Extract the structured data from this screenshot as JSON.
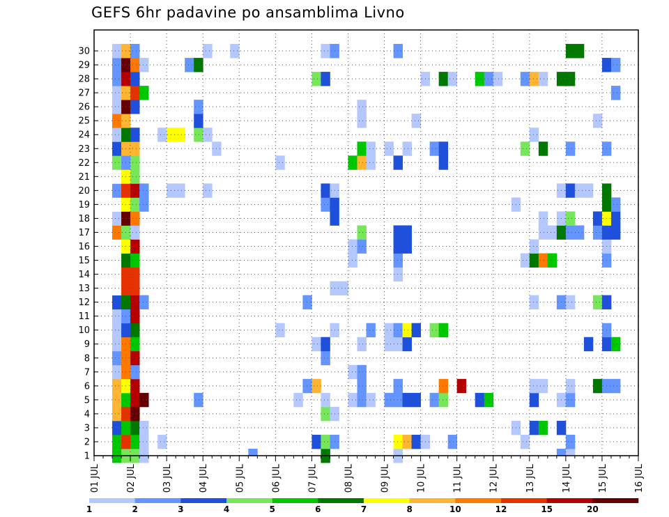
{
  "chart_data": {
    "type": "heatmap",
    "title": "GEFS 6hr padavine po ansamblima Livno",
    "y_members": [
      1,
      2,
      3,
      4,
      5,
      6,
      7,
      8,
      9,
      10,
      11,
      12,
      13,
      14,
      15,
      16,
      17,
      18,
      19,
      20,
      21,
      22,
      23,
      24,
      25,
      26,
      27,
      28,
      29,
      30
    ],
    "x_ticks": [
      "01 JUL",
      "02 JUL",
      "03 JUL",
      "04 JUL",
      "05 JUL",
      "06 JUL",
      "07 JUL",
      "08 JUL",
      "09 JUL",
      "10 JUL",
      "11 JUL",
      "12 JUL",
      "13 JUL",
      "14 JUL",
      "15 JUL",
      "16 JUL"
    ],
    "x_range": [
      "01 JUL 00Z",
      "16 JUL 00Z"
    ],
    "time_step_hours": 6,
    "grid": "dotted",
    "legend_position": "bottom",
    "colorbar": {
      "labels": [
        "1",
        "2",
        "3",
        "4",
        "5",
        "6",
        "7",
        "8",
        "10",
        "12",
        "15",
        "20"
      ],
      "colors": [
        "#b4c8ff",
        "#6495ff",
        "#1e50dc",
        "#78e65a",
        "#00c800",
        "#007800",
        "#ffff00",
        "#ffb432",
        "#ff7800",
        "#e63200",
        "#b40000",
        "#640000"
      ]
    },
    "cells": [
      [
        2,
        1,
        "#00c800"
      ],
      [
        2,
        2,
        "#00c800"
      ],
      [
        2,
        3,
        "#1e50dc"
      ],
      [
        2,
        4,
        "#ffb432"
      ],
      [
        2,
        5,
        "#ffb432"
      ],
      [
        2,
        6,
        "#ffb432"
      ],
      [
        2,
        7,
        "#b4c8ff"
      ],
      [
        2,
        8,
        "#6495ff"
      ],
      [
        2,
        9,
        "#b4c8ff"
      ],
      [
        2,
        10,
        "#b4c8ff"
      ],
      [
        2,
        11,
        "#b4c8ff"
      ],
      [
        2,
        12,
        "#1e50dc"
      ],
      [
        2,
        13,
        "#ffffff"
      ],
      [
        2,
        14,
        "#ffffff"
      ],
      [
        2,
        15,
        "#ffffff"
      ],
      [
        2,
        16,
        "#ffffff"
      ],
      [
        2,
        17,
        "#ff7800"
      ],
      [
        2,
        18,
        "#b4c8ff"
      ],
      [
        2,
        19,
        "#ffffff"
      ],
      [
        2,
        20,
        "#6495ff"
      ],
      [
        2,
        21,
        "#ffffff"
      ],
      [
        2,
        22,
        "#78e65a"
      ],
      [
        2,
        23,
        "#1e50dc"
      ],
      [
        2,
        24,
        "#b4c8ff"
      ],
      [
        2,
        25,
        "#ff7800"
      ],
      [
        2,
        26,
        "#b4c8ff"
      ],
      [
        2,
        27,
        "#b4c8ff"
      ],
      [
        2,
        28,
        "#6495ff"
      ],
      [
        2,
        29,
        "#6495ff"
      ],
      [
        2,
        30,
        "#b4c8ff"
      ],
      [
        3,
        1,
        "#78e65a"
      ],
      [
        3,
        2,
        "#e63200"
      ],
      [
        3,
        3,
        "#00c800"
      ],
      [
        3,
        4,
        "#e63200"
      ],
      [
        3,
        5,
        "#00c800"
      ],
      [
        3,
        6,
        "#ffff00"
      ],
      [
        3,
        7,
        "#ff7800"
      ],
      [
        3,
        8,
        "#ff7800"
      ],
      [
        3,
        9,
        "#ff7800"
      ],
      [
        3,
        10,
        "#1e50dc"
      ],
      [
        3,
        11,
        "#6495ff"
      ],
      [
        3,
        12,
        "#007800"
      ],
      [
        3,
        13,
        "#e63200"
      ],
      [
        3,
        14,
        "#e63200"
      ],
      [
        3,
        15,
        "#007800"
      ],
      [
        3,
        16,
        "#ffff00"
      ],
      [
        3,
        17,
        "#78e65a"
      ],
      [
        3,
        18,
        "#640000"
      ],
      [
        3,
        19,
        "#ffff00"
      ],
      [
        3,
        20,
        "#e63200"
      ],
      [
        3,
        21,
        "#ffff00"
      ],
      [
        3,
        22,
        "#6495ff"
      ],
      [
        3,
        23,
        "#ffb432"
      ],
      [
        3,
        24,
        "#007800"
      ],
      [
        3,
        25,
        "#ffb432"
      ],
      [
        3,
        26,
        "#640000"
      ],
      [
        3,
        27,
        "#ffb432"
      ],
      [
        3,
        28,
        "#b40000"
      ],
      [
        3,
        29,
        "#640000"
      ],
      [
        3,
        30,
        "#ffb432"
      ],
      [
        4,
        1,
        "#78e65a"
      ],
      [
        4,
        2,
        "#00c800"
      ],
      [
        4,
        3,
        "#007800"
      ],
      [
        4,
        4,
        "#640000"
      ],
      [
        4,
        5,
        "#b40000"
      ],
      [
        4,
        6,
        "#b40000"
      ],
      [
        4,
        7,
        "#6495ff"
      ],
      [
        4,
        8,
        "#b40000"
      ],
      [
        4,
        9,
        "#00c800"
      ],
      [
        4,
        10,
        "#007800"
      ],
      [
        4,
        11,
        "#b40000"
      ],
      [
        4,
        12,
        "#b40000"
      ],
      [
        4,
        13,
        "#e63200"
      ],
      [
        4,
        14,
        "#e63200"
      ],
      [
        4,
        15,
        "#00c800"
      ],
      [
        4,
        16,
        "#b40000"
      ],
      [
        4,
        17,
        "#b4c8ff"
      ],
      [
        4,
        18,
        "#ff7800"
      ],
      [
        4,
        19,
        "#78e65a"
      ],
      [
        4,
        20,
        "#b40000"
      ],
      [
        4,
        21,
        "#78e65a"
      ],
      [
        4,
        22,
        "#78e65a"
      ],
      [
        4,
        23,
        "#ffb432"
      ],
      [
        4,
        24,
        "#1e50dc"
      ],
      [
        4,
        26,
        "#1e50dc"
      ],
      [
        4,
        27,
        "#e63200"
      ],
      [
        4,
        28,
        "#1e50dc"
      ],
      [
        4,
        29,
        "#ff7800"
      ],
      [
        4,
        30,
        "#6495ff"
      ],
      [
        5,
        1,
        "#b4c8ff"
      ],
      [
        5,
        2,
        "#b4c8ff"
      ],
      [
        5,
        3,
        "#b4c8ff"
      ],
      [
        5,
        5,
        "#640000"
      ],
      [
        5,
        12,
        "#6495ff"
      ],
      [
        5,
        19,
        "#6495ff"
      ],
      [
        5,
        20,
        "#6495ff"
      ],
      [
        5,
        27,
        "#00c800"
      ],
      [
        5,
        29,
        "#b4c8ff"
      ],
      [
        7,
        2,
        "#b4c8ff"
      ],
      [
        7,
        24,
        "#b4c8ff"
      ],
      [
        8,
        20,
        "#b4c8ff"
      ],
      [
        8,
        24,
        "#ffff00"
      ],
      [
        9,
        20,
        "#b4c8ff"
      ],
      [
        9,
        24,
        "#ffff00"
      ],
      [
        10,
        29,
        "#6495ff"
      ],
      [
        11,
        5,
        "#6495ff"
      ],
      [
        11,
        24,
        "#78e65a"
      ],
      [
        11,
        25,
        "#1e50dc"
      ],
      [
        11,
        26,
        "#6495ff"
      ],
      [
        11,
        29,
        "#007800"
      ],
      [
        12,
        20,
        "#b4c8ff"
      ],
      [
        12,
        24,
        "#b4c8ff"
      ],
      [
        12,
        30,
        "#b4c8ff"
      ],
      [
        13,
        23,
        "#b4c8ff"
      ],
      [
        15,
        30,
        "#b4c8ff"
      ],
      [
        17,
        0,
        "#6495ff"
      ],
      [
        20,
        10,
        "#b4c8ff"
      ],
      [
        20,
        22,
        "#b4c8ff"
      ],
      [
        22,
        5,
        "#b4c8ff"
      ],
      [
        23,
        12,
        "#6495ff"
      ],
      [
        23,
        6,
        "#6495ff"
      ],
      [
        24,
        2,
        "#1e50dc"
      ],
      [
        24,
        9,
        "#b4c8ff"
      ],
      [
        24,
        28,
        "#78e65a"
      ],
      [
        24,
        6,
        "#ffb432"
      ],
      [
        25,
        1,
        "#007800"
      ],
      [
        25,
        2,
        "#78e65a"
      ],
      [
        25,
        4,
        "#78e65a"
      ],
      [
        25,
        5,
        "#b4c8ff"
      ],
      [
        25,
        8,
        "#6495ff"
      ],
      [
        25,
        9,
        "#1e50dc"
      ],
      [
        25,
        19,
        "#6495ff"
      ],
      [
        25,
        20,
        "#1e50dc"
      ],
      [
        25,
        28,
        "#1e50dc"
      ],
      [
        25,
        30,
        "#b4c8ff"
      ],
      [
        26,
        2,
        "#6495ff"
      ],
      [
        26,
        4,
        "#b4c8ff"
      ],
      [
        26,
        10,
        "#b4c8ff"
      ],
      [
        26,
        13,
        "#b4c8ff"
      ],
      [
        26,
        18,
        "#1e50dc"
      ],
      [
        26,
        19,
        "#1e50dc"
      ],
      [
        26,
        20,
        "#b4c8ff"
      ],
      [
        26,
        30,
        "#6495ff"
      ],
      [
        27,
        13,
        "#b4c8ff"
      ],
      [
        28,
        5,
        "#b4c8ff"
      ],
      [
        28,
        7,
        "#b4c8ff"
      ],
      [
        28,
        15,
        "#b4c8ff"
      ],
      [
        28,
        16,
        "#b4c8ff"
      ],
      [
        28,
        22,
        "#00c800"
      ],
      [
        29,
        5,
        "#6495ff"
      ],
      [
        29,
        6,
        "#6495ff"
      ],
      [
        29,
        7,
        "#6495ff"
      ],
      [
        29,
        9,
        "#b4c8ff"
      ],
      [
        29,
        16,
        "#6495ff"
      ],
      [
        29,
        17,
        "#78e65a"
      ],
      [
        29,
        22,
        "#ffb432"
      ],
      [
        29,
        23,
        "#00c800"
      ],
      [
        29,
        25,
        "#b4c8ff"
      ],
      [
        29,
        26,
        "#b4c8ff"
      ],
      [
        30,
        5,
        "#b4c8ff"
      ],
      [
        30,
        10,
        "#6495ff"
      ],
      [
        30,
        22,
        "#b4c8ff"
      ],
      [
        30,
        23,
        "#b4c8ff"
      ],
      [
        32,
        5,
        "#6495ff"
      ],
      [
        32,
        9,
        "#b4c8ff"
      ],
      [
        32,
        10,
        "#b4c8ff"
      ],
      [
        32,
        23,
        "#b4c8ff"
      ],
      [
        33,
        1,
        "#b4c8ff"
      ],
      [
        33,
        2,
        "#ffff00"
      ],
      [
        33,
        5,
        "#6495ff"
      ],
      [
        33,
        6,
        "#6495ff"
      ],
      [
        33,
        9,
        "#b4c8ff"
      ],
      [
        33,
        10,
        "#6495ff"
      ],
      [
        33,
        14,
        "#b4c8ff"
      ],
      [
        33,
        15,
        "#6495ff"
      ],
      [
        33,
        16,
        "#1e50dc"
      ],
      [
        33,
        17,
        "#1e50dc"
      ],
      [
        33,
        22,
        "#1e50dc"
      ],
      [
        33,
        30,
        "#6495ff"
      ],
      [
        34,
        2,
        "#ffb432"
      ],
      [
        34,
        5,
        "#1e50dc"
      ],
      [
        34,
        9,
        "#1e50dc"
      ],
      [
        34,
        10,
        "#ffff00"
      ],
      [
        34,
        16,
        "#1e50dc"
      ],
      [
        34,
        17,
        "#1e50dc"
      ],
      [
        34,
        23,
        "#b4c8ff"
      ],
      [
        35,
        2,
        "#1e50dc"
      ],
      [
        35,
        5,
        "#1e50dc"
      ],
      [
        35,
        10,
        "#1e50dc"
      ],
      [
        35,
        25,
        "#b4c8ff"
      ],
      [
        36,
        2,
        "#b4c8ff"
      ],
      [
        36,
        28,
        "#b4c8ff"
      ],
      [
        37,
        5,
        "#6495ff"
      ],
      [
        37,
        10,
        "#78e65a"
      ],
      [
        37,
        23,
        "#6495ff"
      ],
      [
        38,
        5,
        "#78e65a"
      ],
      [
        38,
        6,
        "#ff7800"
      ],
      [
        38,
        10,
        "#00c800"
      ],
      [
        38,
        22,
        "#1e50dc"
      ],
      [
        38,
        23,
        "#1e50dc"
      ],
      [
        38,
        28,
        "#007800"
      ],
      [
        39,
        2,
        "#6495ff"
      ],
      [
        39,
        28,
        "#b4c8ff"
      ],
      [
        40,
        6,
        "#b40000"
      ],
      [
        42,
        5,
        "#1e50dc"
      ],
      [
        42,
        28,
        "#00c800"
      ],
      [
        43,
        5,
        "#00c800"
      ],
      [
        43,
        28,
        "#6495ff"
      ],
      [
        44,
        28,
        "#b4c8ff"
      ],
      [
        46,
        3,
        "#b4c8ff"
      ],
      [
        46,
        19,
        "#b4c8ff"
      ],
      [
        47,
        2,
        "#b4c8ff"
      ],
      [
        47,
        15,
        "#b4c8ff"
      ],
      [
        47,
        23,
        "#78e65a"
      ],
      [
        47,
        28,
        "#6495ff"
      ],
      [
        48,
        3,
        "#1e50dc"
      ],
      [
        48,
        5,
        "#1e50dc"
      ],
      [
        48,
        6,
        "#b4c8ff"
      ],
      [
        48,
        12,
        "#b4c8ff"
      ],
      [
        48,
        15,
        "#007800"
      ],
      [
        48,
        16,
        "#b4c8ff"
      ],
      [
        48,
        24,
        "#b4c8ff"
      ],
      [
        48,
        28,
        "#ffb432"
      ],
      [
        49,
        3,
        "#00c800"
      ],
      [
        49,
        6,
        "#b4c8ff"
      ],
      [
        49,
        15,
        "#ff7800"
      ],
      [
        49,
        17,
        "#b4c8ff"
      ],
      [
        49,
        18,
        "#b4c8ff"
      ],
      [
        49,
        23,
        "#007800"
      ],
      [
        49,
        28,
        "#b4c8ff"
      ],
      [
        50,
        15,
        "#00c800"
      ],
      [
        50,
        17,
        "#b4c8ff"
      ],
      [
        51,
        0,
        "#6495ff"
      ],
      [
        51,
        3,
        "#1e50dc"
      ],
      [
        51,
        5,
        "#b4c8ff"
      ],
      [
        51,
        12,
        "#6495ff"
      ],
      [
        51,
        17,
        "#007800"
      ],
      [
        51,
        18,
        "#b4c8ff"
      ],
      [
        51,
        20,
        "#b4c8ff"
      ],
      [
        51,
        28,
        "#007800"
      ],
      [
        52,
        0,
        "#b4c8ff"
      ],
      [
        52,
        2,
        "#6495ff"
      ],
      [
        52,
        5,
        "#6495ff"
      ],
      [
        52,
        6,
        "#b4c8ff"
      ],
      [
        52,
        12,
        "#b4c8ff"
      ],
      [
        52,
        17,
        "#6495ff"
      ],
      [
        52,
        18,
        "#78e65a"
      ],
      [
        52,
        20,
        "#1e50dc"
      ],
      [
        52,
        23,
        "#6495ff"
      ],
      [
        52,
        28,
        "#007800"
      ],
      [
        52,
        30,
        "#007800"
      ],
      [
        53,
        17,
        "#6495ff"
      ],
      [
        53,
        20,
        "#b4c8ff"
      ],
      [
        53,
        30,
        "#007800"
      ],
      [
        54,
        9,
        "#1e50dc"
      ],
      [
        54,
        20,
        "#b4c8ff"
      ],
      [
        55,
        6,
        "#007800"
      ],
      [
        55,
        12,
        "#78e65a"
      ],
      [
        55,
        17,
        "#6495ff"
      ],
      [
        55,
        18,
        "#1e50dc"
      ],
      [
        55,
        25,
        "#b4c8ff"
      ],
      [
        56,
        6,
        "#6495ff"
      ],
      [
        56,
        9,
        "#1e50dc"
      ],
      [
        56,
        10,
        "#6495ff"
      ],
      [
        56,
        12,
        "#1e50dc"
      ],
      [
        56,
        15,
        "#6495ff"
      ],
      [
        56,
        16,
        "#b4c8ff"
      ],
      [
        56,
        17,
        "#1e50dc"
      ],
      [
        56,
        18,
        "#ffff00"
      ],
      [
        56,
        19,
        "#007800"
      ],
      [
        56,
        20,
        "#007800"
      ],
      [
        56,
        23,
        "#6495ff"
      ],
      [
        56,
        29,
        "#1e50dc"
      ],
      [
        57,
        6,
        "#6495ff"
      ],
      [
        57,
        9,
        "#00c800"
      ],
      [
        57,
        17,
        "#1e50dc"
      ],
      [
        57,
        18,
        "#1e50dc"
      ],
      [
        57,
        19,
        "#6495ff"
      ],
      [
        57,
        27,
        "#6495ff"
      ],
      [
        57,
        29,
        "#6495ff"
      ]
    ]
  }
}
